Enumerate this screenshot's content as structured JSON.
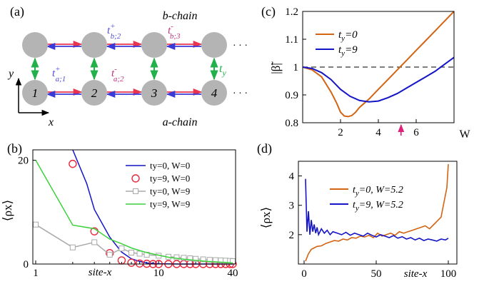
{
  "panel_a": {
    "label": "(a)",
    "b_chain": "b-chain",
    "a_chain": "a-chain",
    "axis_y": "y",
    "axis_x": "x",
    "site_numbers": [
      "1",
      "2",
      "3",
      "4"
    ],
    "dots": "· · ·",
    "hoppings": {
      "t_b2": {
        "base": "t",
        "sup": "+",
        "sub": "b;2"
      },
      "t_b3": {
        "base": "t",
        "sup": "-",
        "sub": "b;3"
      },
      "t_a1": {
        "base": "t",
        "sup": "+",
        "sub": "a;1"
      },
      "t_a2": {
        "base": "t",
        "sup": "-",
        "sub": "a;2"
      },
      "t_y": {
        "base": "t",
        "sub": "y"
      }
    },
    "colors": {
      "site": "#b4b4b4",
      "forward": "#e8344e",
      "backward": "#3a3ad8",
      "vertical": "#22b04b",
      "label_b": "#5050e0",
      "label_a": "#c03080"
    }
  },
  "chart_data": [
    {
      "panel": "(b)",
      "type": "line",
      "ylabel": "⟨ρx⟩",
      "xlabel": "site-x",
      "xscale": "log",
      "xlim": [
        1,
        40
      ],
      "ylim": [
        0,
        22
      ],
      "xticks": [
        "1",
        "10",
        "40"
      ],
      "yticks": [
        "0",
        "20"
      ],
      "legend": "top-right",
      "series": [
        {
          "name": "ty=0, W=0",
          "color": "#1515c8",
          "marker": "none",
          "x": [
            2.0,
            2.6,
            3,
            4,
            5,
            6,
            7,
            8,
            10,
            15,
            20,
            30,
            40
          ],
          "y": [
            22.0,
            15.5,
            10.5,
            5.2,
            2.3,
            1.0,
            0.5,
            0.2,
            0.05,
            0,
            0,
            0,
            0
          ]
        },
        {
          "name": "ty=9, W=0",
          "color": "#e8283c",
          "marker": "circle",
          "x": [
            2,
            3,
            4,
            5,
            6,
            7,
            8,
            9,
            10,
            12,
            14,
            16,
            18,
            20,
            23,
            26,
            29,
            32,
            35,
            38,
            40
          ],
          "y": [
            19.3,
            6.3,
            2.1,
            0.7,
            0.25,
            0.1,
            0.05,
            0,
            0,
            0,
            0,
            0,
            0,
            0,
            0,
            0,
            0,
            0,
            0,
            0,
            0
          ]
        },
        {
          "name": "ty=0, W=9",
          "color": "#aaaaaa",
          "marker": "square",
          "x": [
            1,
            2,
            3,
            4,
            5,
            6,
            7,
            8,
            10,
            12,
            14,
            16,
            18,
            20,
            23,
            26,
            29,
            32,
            35,
            38,
            40
          ],
          "y": [
            7.6,
            3.2,
            4.2,
            1.8,
            3.0,
            2.2,
            2.0,
            1.8,
            1.6,
            1.4,
            1.3,
            1.2,
            1.1,
            1.0,
            0.9,
            0.8,
            0.75,
            0.7,
            0.65,
            0.6,
            0.55
          ]
        },
        {
          "name": "ty=9, W=9",
          "color": "#3cd23c",
          "marker": "none",
          "x": [
            1,
            2,
            3,
            4,
            5,
            6,
            7,
            8,
            10,
            12,
            15,
            20,
            25,
            30,
            35,
            40
          ],
          "y": [
            20.0,
            7.5,
            6.8,
            4.8,
            3.9,
            3.1,
            2.6,
            2.2,
            1.7,
            1.3,
            1.0,
            0.7,
            0.5,
            0.4,
            0.3,
            0.2
          ]
        }
      ]
    },
    {
      "panel": "(c)",
      "type": "line",
      "ylabel": "|β̃|",
      "xlabel": "W",
      "xlim": [
        0,
        8
      ],
      "ylim": [
        0.8,
        1.2
      ],
      "xticks": [
        "2",
        "4",
        "6"
      ],
      "yticks": [
        "0.8",
        "0.9",
        "1",
        "1.1",
        "1.2"
      ],
      "reference_y": 1,
      "arrow_x": 5.2,
      "arrow_color": "#e0207a",
      "legend": "top-left",
      "series": [
        {
          "name": "ty=0",
          "label_base": "t",
          "label_sub": "y",
          "label_rest": "=0",
          "color": "#d26414",
          "x": [
            0,
            0.5,
            1.0,
            1.5,
            1.8,
            2.0,
            2.2,
            2.4,
            2.6,
            2.8,
            3.0,
            3.5,
            4.0,
            4.5,
            5.0,
            5.5,
            6.0,
            6.5,
            7.0,
            7.5,
            8.0
          ],
          "y": [
            1.0,
            0.99,
            0.965,
            0.91,
            0.87,
            0.838,
            0.824,
            0.822,
            0.826,
            0.838,
            0.855,
            0.885,
            0.92,
            0.955,
            0.99,
            1.025,
            1.06,
            1.095,
            1.13,
            1.165,
            1.2
          ]
        },
        {
          "name": "ty=9",
          "label_base": "t",
          "label_sub": "y",
          "label_rest": "=9",
          "color": "#1515c8",
          "x": [
            0,
            0.5,
            1.0,
            1.5,
            2.0,
            2.5,
            3.0,
            3.5,
            4.0,
            4.5,
            5.0,
            5.5,
            6.0,
            6.5,
            7.0,
            7.5,
            8.0
          ],
          "y": [
            1.0,
            0.995,
            0.98,
            0.955,
            0.92,
            0.895,
            0.88,
            0.875,
            0.878,
            0.89,
            0.905,
            0.925,
            0.945,
            0.965,
            0.985,
            1.01,
            1.035
          ]
        }
      ]
    },
    {
      "panel": "(d)",
      "type": "line",
      "ylabel": "⟨ρx⟩",
      "xlabel": "site-x",
      "xlim": [
        0,
        100
      ],
      "ylim": [
        1,
        4.5
      ],
      "xticks": [
        "0",
        "50",
        "100"
      ],
      "yticks": [
        "2",
        "3",
        "4"
      ],
      "legend": "top-center",
      "series": [
        {
          "name": "ty=0, W=5.2",
          "label_base": "t",
          "label_sub": "y",
          "label_rest": "=0, W=5.2",
          "color": "#d26414",
          "x": [
            1,
            3,
            5,
            7,
            9,
            12,
            15,
            18,
            21,
            24,
            27,
            30,
            33,
            36,
            39,
            42,
            45,
            48,
            51,
            54,
            57,
            60,
            63,
            66,
            69,
            72,
            75,
            78,
            81,
            84,
            87,
            90,
            93,
            95,
            97,
            99,
            100
          ],
          "y": [
            1.1,
            1.35,
            1.5,
            1.55,
            1.6,
            1.62,
            1.7,
            1.75,
            1.8,
            1.78,
            1.85,
            1.82,
            1.9,
            1.88,
            1.95,
            1.92,
            1.98,
            1.9,
            2.05,
            1.95,
            2.0,
            2.05,
            1.98,
            2.1,
            2.05,
            2.1,
            2.15,
            2.2,
            2.25,
            2.3,
            2.2,
            2.35,
            2.5,
            2.6,
            3.1,
            3.6,
            4.4
          ]
        },
        {
          "name": "ty=9, W=5.2",
          "label_base": "t",
          "label_sub": "y",
          "label_rest": "=9, W=5.2",
          "color": "#1515c8",
          "x": [
            1,
            2,
            3,
            4,
            5,
            6,
            7,
            8,
            9,
            10,
            12,
            14,
            16,
            18,
            20,
            23,
            26,
            29,
            32,
            35,
            38,
            41,
            44,
            47,
            50,
            53,
            56,
            59,
            62,
            65,
            68,
            71,
            74,
            77,
            80,
            83,
            86,
            89,
            92,
            95,
            98,
            100
          ],
          "y": [
            3.9,
            2.1,
            2.8,
            2.0,
            2.5,
            2.1,
            2.35,
            2.05,
            2.25,
            2.0,
            2.2,
            2.05,
            2.15,
            2.0,
            2.1,
            2.05,
            2.0,
            2.08,
            1.98,
            2.05,
            2.0,
            1.95,
            2.05,
            1.98,
            1.92,
            2.0,
            1.95,
            1.9,
            1.97,
            1.88,
            1.93,
            1.85,
            1.9,
            1.82,
            1.88,
            1.8,
            1.85,
            1.82,
            1.78,
            1.85,
            1.82,
            1.88
          ]
        }
      ]
    }
  ]
}
